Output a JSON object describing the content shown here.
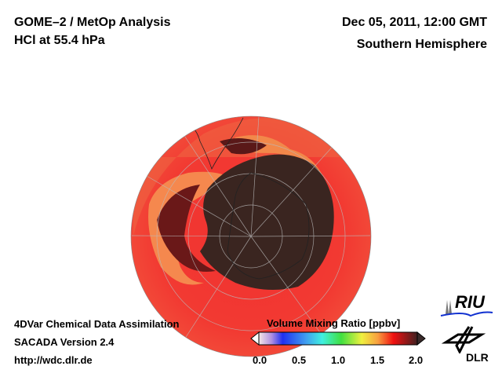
{
  "header": {
    "title": "GOME–2 / MetOp Analysis",
    "subtitle": "HCl at 55.4 hPa",
    "datetime": "Dec 05, 2011, 12:00 GMT",
    "region": "Southern Hemisphere"
  },
  "footer": {
    "line1": "4DVar Chemical Data Assimilation",
    "line2": "SACADA Version 2.4",
    "url": "http://wdc.dlr.de"
  },
  "colorbar": {
    "title": "Volume Mixing Ratio [ppbv]",
    "ticks": [
      "0.0",
      "0.5",
      "1.0",
      "1.5",
      "2.0"
    ],
    "range": [
      0.0,
      2.0
    ]
  },
  "logos": {
    "riu": "RIU",
    "dlr": "DLR"
  }
}
